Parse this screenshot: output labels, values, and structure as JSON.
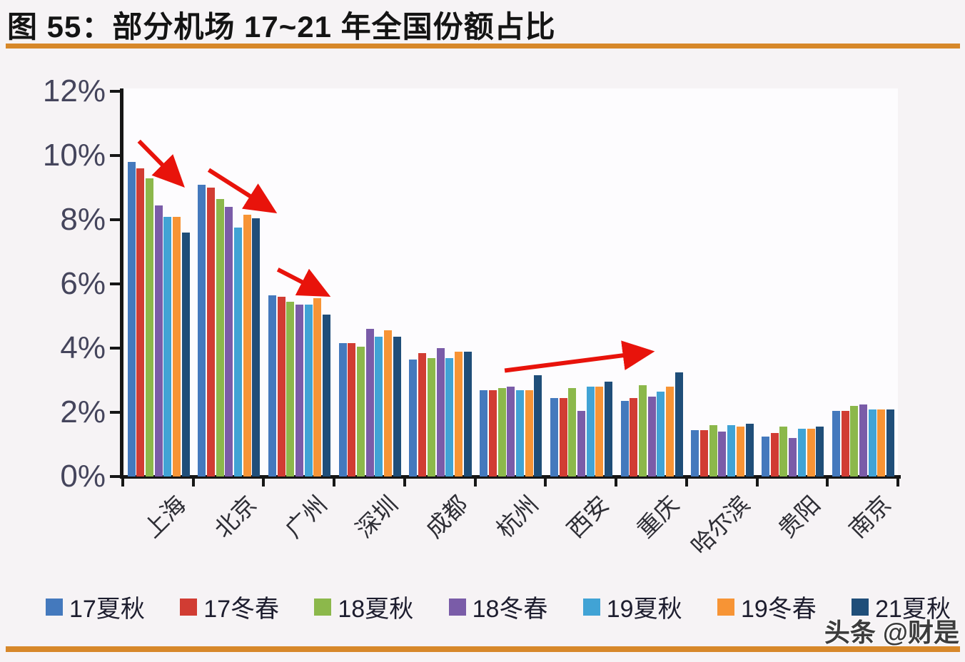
{
  "page": {
    "title": "图 55：部分机场 17~21 年全国份额占比",
    "watermark": "头条 @财是",
    "accent_color": "#d7882a"
  },
  "chart_data": {
    "type": "bar",
    "title": "部分机场 17~21 年全国份额占比",
    "categories": [
      "上海",
      "北京",
      "广州",
      "深圳",
      "成都",
      "杭州",
      "西安",
      "重庆",
      "哈尔滨",
      "贵阳",
      "南京"
    ],
    "series": [
      {
        "name": "17夏秋",
        "color": "#4479bd",
        "values": [
          9.8,
          9.1,
          5.65,
          4.15,
          3.65,
          2.7,
          2.45,
          2.35,
          1.45,
          1.25,
          2.05
        ]
      },
      {
        "name": "17冬春",
        "color": "#d13c33",
        "values": [
          9.6,
          9.0,
          5.6,
          4.15,
          3.85,
          2.7,
          2.45,
          2.45,
          1.45,
          1.35,
          2.05
        ]
      },
      {
        "name": "18夏秋",
        "color": "#8cb84b",
        "values": [
          9.3,
          8.65,
          5.45,
          4.05,
          3.7,
          2.75,
          2.75,
          2.85,
          1.6,
          1.55,
          2.2
        ]
      },
      {
        "name": "18冬春",
        "color": "#7a5ca8",
        "values": [
          8.45,
          8.4,
          5.35,
          4.6,
          4.0,
          2.8,
          2.05,
          2.5,
          1.4,
          1.2,
          2.25
        ]
      },
      {
        "name": "19夏秋",
        "color": "#41a3d5",
        "values": [
          8.1,
          7.75,
          5.35,
          4.35,
          3.7,
          2.7,
          2.8,
          2.65,
          1.6,
          1.5,
          2.1
        ]
      },
      {
        "name": "19冬春",
        "color": "#f79435",
        "values": [
          8.1,
          8.15,
          5.55,
          4.55,
          3.9,
          2.7,
          2.8,
          2.8,
          1.55,
          1.5,
          2.1
        ]
      },
      {
        "name": "21夏秋",
        "color": "#1f4e79",
        "values": [
          7.6,
          8.05,
          5.05,
          4.35,
          3.9,
          3.15,
          2.95,
          3.25,
          1.65,
          1.55,
          2.1
        ]
      }
    ],
    "xlabel": "",
    "ylabel": "",
    "ylim": [
      0,
      12
    ],
    "y_tick_step": 2,
    "y_tick_labels": [
      "0%",
      "2%",
      "4%",
      "6%",
      "8%",
      "10%",
      "12%"
    ],
    "grid": false,
    "legend_position": "bottom",
    "annotations": [
      {
        "type": "arrow",
        "color": "#e8130b",
        "from": [
          0.23,
          10.45
        ],
        "to": [
          0.88,
          9.0
        ]
      },
      {
        "type": "arrow",
        "color": "#e8130b",
        "from": [
          1.22,
          9.55
        ],
        "to": [
          2.19,
          8.2
        ]
      },
      {
        "type": "arrow",
        "color": "#e8130b",
        "from": [
          2.2,
          6.45
        ],
        "to": [
          2.95,
          5.6
        ]
      },
      {
        "type": "arrow",
        "color": "#e8130b",
        "from": [
          5.42,
          3.3
        ],
        "to": [
          7.55,
          3.9
        ]
      }
    ]
  }
}
